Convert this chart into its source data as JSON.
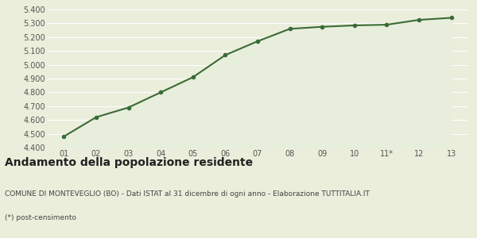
{
  "x_labels": [
    "01",
    "02",
    "03",
    "04",
    "05",
    "06",
    "07",
    "08",
    "09",
    "10",
    "11*",
    "12",
    "13"
  ],
  "x_values": [
    1,
    2,
    3,
    4,
    5,
    6,
    7,
    8,
    9,
    10,
    11,
    12,
    13
  ],
  "y_values": [
    4480,
    4620,
    4690,
    4800,
    4910,
    5070,
    5170,
    5260,
    5275,
    5285,
    5290,
    5325,
    5340
  ],
  "ylim": [
    4400,
    5400
  ],
  "yticks": [
    4400,
    4500,
    4600,
    4700,
    4800,
    4900,
    5000,
    5100,
    5200,
    5300,
    5400
  ],
  "line_color": "#3a6b35",
  "fill_color": "#e8eedc",
  "marker_color": "#3a6b35",
  "bg_color": "#eaeedb",
  "plot_bg_color": "#eaeedb",
  "grid_color": "#ffffff",
  "title": "Andamento della popolazione residente",
  "subtitle": "COMUNE DI MONTEVEGLIO (BO) - Dati ISTAT al 31 dicembre di ogni anno - Elaborazione TUTTITALIA.IT",
  "footnote": "(*) post-censimento",
  "title_fontsize": 10,
  "subtitle_fontsize": 6.5,
  "footnote_fontsize": 6.5,
  "tick_fontsize": 7
}
